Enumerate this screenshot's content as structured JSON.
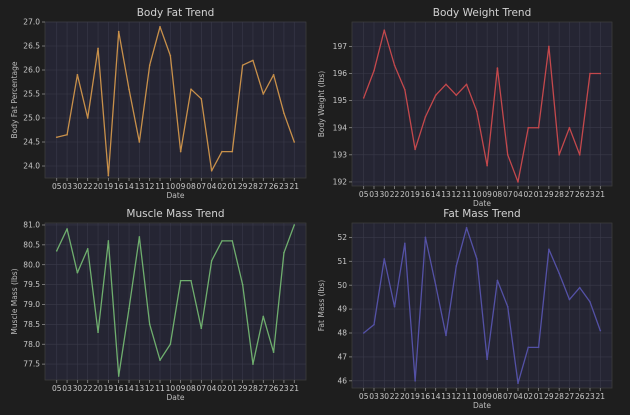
{
  "chart_data": [
    {
      "type": "line",
      "title": "Body Fat Trend",
      "xlabel": "Date",
      "ylabel": "Body Fat Percentage",
      "categories": [
        "05",
        "03",
        "30",
        "22",
        "20",
        "19",
        "16",
        "14",
        "13",
        "12",
        "11",
        "10",
        "09",
        "08",
        "07",
        "04",
        "02",
        "01",
        "29",
        "28",
        "27",
        "26",
        "23",
        "21"
      ],
      "ylim": [
        23.75,
        27.0
      ],
      "yticks": [
        24.0,
        24.5,
        25.0,
        25.5,
        26.0,
        26.5,
        27.0
      ],
      "ytick_labels": [
        "24.0",
        "24.5",
        "25.0",
        "25.5",
        "26.0",
        "26.5",
        "27.0"
      ],
      "color": "#c8904a",
      "values": [
        24.6,
        24.65,
        25.9,
        25.0,
        26.45,
        23.8,
        26.8,
        25.6,
        24.5,
        26.1,
        26.9,
        26.3,
        24.3,
        25.6,
        25.4,
        23.9,
        24.3,
        24.3,
        26.1,
        26.2,
        25.5,
        25.9,
        25.1,
        24.5
      ]
    },
    {
      "type": "line",
      "title": "Body Weight Trend",
      "xlabel": "Date",
      "ylabel": "Body Weight (lbs)",
      "categories": [
        "05",
        "03",
        "30",
        "22",
        "20",
        "19",
        "16",
        "14",
        "13",
        "12",
        "11",
        "10",
        "09",
        "08",
        "07",
        "04",
        "02",
        "01",
        "29",
        "28",
        "27",
        "26",
        "23",
        "21"
      ],
      "ylim": [
        191.85,
        197.9
      ],
      "yticks": [
        192,
        193,
        194,
        195,
        196,
        197
      ],
      "ytick_labels": [
        "192",
        "193",
        "194",
        "195",
        "196",
        "197"
      ],
      "color": "#c4484c",
      "values": [
        195.1,
        196.1,
        197.6,
        196.3,
        195.4,
        193.2,
        194.4,
        195.2,
        195.6,
        195.2,
        195.6,
        194.6,
        192.6,
        196.2,
        193.0,
        192.0,
        194.0,
        194.0,
        197.0,
        193.0,
        194.0,
        193.0,
        196.0,
        196.0
      ]
    },
    {
      "type": "line",
      "title": "Muscle Mass Trend",
      "xlabel": "Date",
      "ylabel": "Muscle Mass (lbs)",
      "categories": [
        "05",
        "03",
        "30",
        "22",
        "20",
        "19",
        "16",
        "14",
        "13",
        "12",
        "11",
        "10",
        "09",
        "08",
        "07",
        "04",
        "02",
        "01",
        "29",
        "28",
        "27",
        "26",
        "23",
        "21"
      ],
      "ylim": [
        77.1,
        81.05
      ],
      "yticks": [
        77.5,
        78.0,
        78.5,
        79.0,
        79.5,
        80.0,
        80.5,
        81.0
      ],
      "ytick_labels": [
        "77.5",
        "78.0",
        "78.5",
        "79.0",
        "79.5",
        "80.0",
        "80.5",
        "81.0"
      ],
      "color": "#6fae6e",
      "values": [
        80.35,
        80.9,
        79.8,
        80.4,
        78.3,
        80.6,
        77.2,
        78.9,
        80.7,
        78.5,
        77.6,
        78.0,
        79.6,
        79.6,
        78.4,
        80.1,
        80.6,
        80.6,
        79.5,
        77.5,
        78.7,
        77.8,
        80.3,
        81.0
      ]
    },
    {
      "type": "line",
      "title": "Fat Mass Trend",
      "xlabel": "Date",
      "ylabel": "Fat Mass (lbs)",
      "categories": [
        "05",
        "03",
        "30",
        "22",
        "20",
        "19",
        "16",
        "14",
        "13",
        "12",
        "11",
        "10",
        "09",
        "08",
        "07",
        "04",
        "02",
        "01",
        "29",
        "28",
        "27",
        "26",
        "23",
        "21"
      ],
      "ylim": [
        45.7,
        52.6
      ],
      "yticks": [
        46,
        47,
        48,
        49,
        50,
        51,
        52
      ],
      "ytick_labels": [
        "46",
        "47",
        "48",
        "49",
        "50",
        "51",
        "52"
      ],
      "color": "#5451a6",
      "values": [
        48.0,
        48.35,
        51.1,
        49.1,
        51.75,
        46.0,
        52.0,
        50.0,
        47.9,
        50.8,
        52.4,
        51.1,
        46.9,
        50.2,
        49.1,
        45.9,
        47.4,
        47.4,
        51.5,
        50.5,
        49.4,
        49.9,
        49.3,
        48.1
      ]
    }
  ]
}
